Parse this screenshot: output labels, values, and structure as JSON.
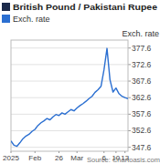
{
  "chart_data": {
    "type": "line",
    "title": "British Pound / Pakistani Rupee",
    "y_label": "Exch. rate",
    "source": "Source: Chartoasis.com",
    "categories": [
      "2025",
      null,
      null,
      null,
      null,
      null,
      null,
      null,
      "Feb",
      null,
      null,
      null,
      null,
      null,
      null,
      null,
      "26",
      null,
      null,
      null,
      null,
      null,
      "Mar",
      null,
      null,
      null,
      null,
      null,
      null,
      null,
      null,
      "6",
      null,
      null,
      null,
      "10",
      null,
      null,
      "13",
      null
    ],
    "series": [
      {
        "name": "Exch. rate",
        "color": "#2b6fd1",
        "values": [
          349.5,
          348.2,
          347.9,
          349.0,
          350.2,
          351.0,
          351.5,
          352.4,
          353.0,
          354.2,
          355.0,
          355.6,
          356.3,
          355.9,
          356.8,
          357.5,
          357.2,
          358.0,
          357.6,
          358.3,
          359.0,
          358.6,
          359.5,
          360.2,
          360.8,
          361.5,
          362.3,
          363.0,
          364.2,
          365.0,
          366.0,
          371.0,
          377.5,
          368.0,
          364.3,
          365.5,
          363.8,
          363.0,
          362.6,
          362.3
        ]
      }
    ],
    "ylim": [
      346.4,
      380
    ],
    "yticks": [
      347.6,
      352.6,
      357.6,
      362.6,
      367.6,
      372.6,
      377.6
    ],
    "grid": true,
    "legend": "top-left"
  }
}
